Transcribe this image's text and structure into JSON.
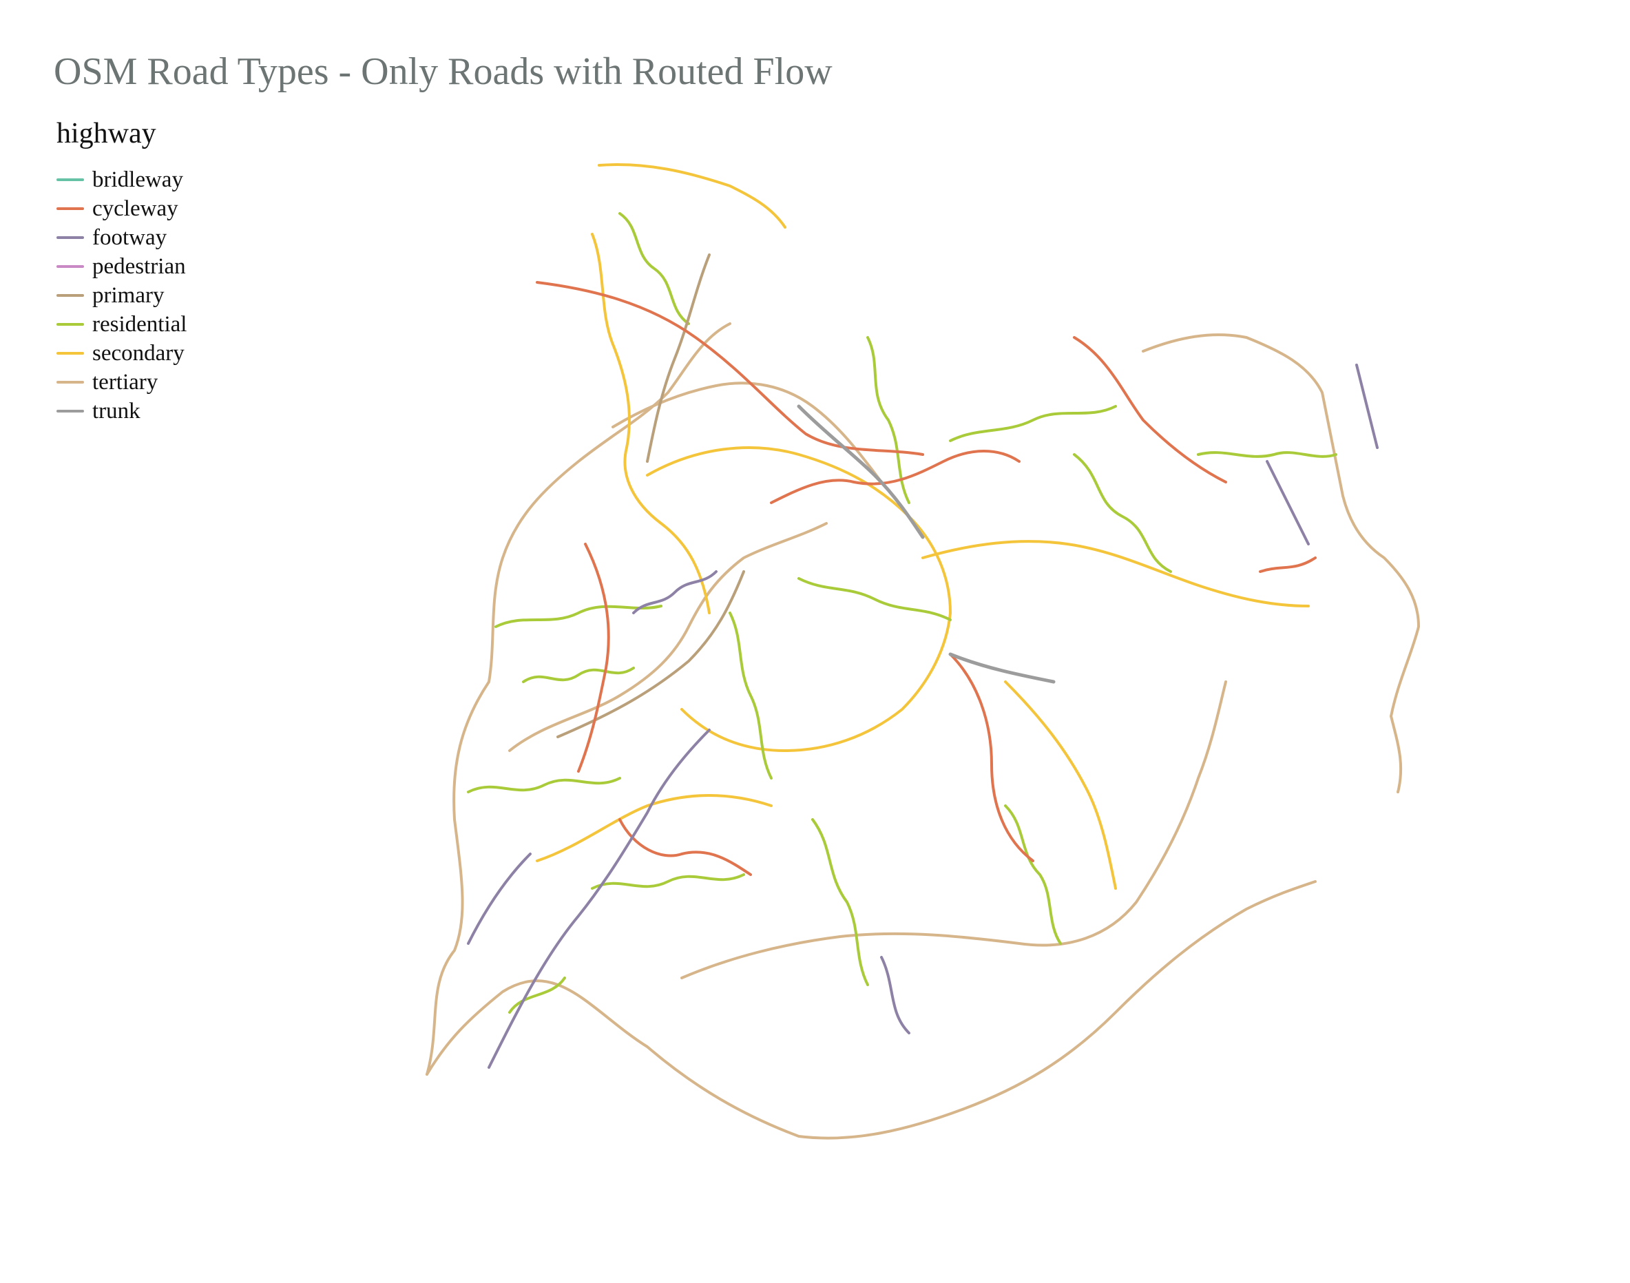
{
  "title": "OSM Road Types - Only Roads with Routed Flow",
  "legend": {
    "title": "highway",
    "items": [
      {
        "label": "bridleway",
        "color": "#66c2a5"
      },
      {
        "label": "cycleway",
        "color": "#e0744f"
      },
      {
        "label": "footway",
        "color": "#8d82a6"
      },
      {
        "label": "pedestrian",
        "color": "#c889c4"
      },
      {
        "label": "primary",
        "color": "#b9a07a"
      },
      {
        "label": "residential",
        "color": "#a9cb3a"
      },
      {
        "label": "secondary",
        "color": "#f4c43a"
      },
      {
        "label": "tertiary",
        "color": "#d6b58a"
      },
      {
        "label": "trunk",
        "color": "#9c9c9c"
      }
    ]
  }
}
